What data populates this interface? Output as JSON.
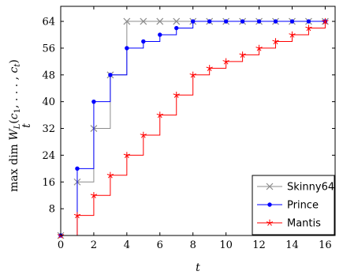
{
  "chart_data": {
    "type": "line",
    "step": true,
    "xlabel": "t",
    "ylabel": "max dim W_L(c_1, ..., c_t)",
    "ylabel_sub": "t",
    "xlim": [
      0,
      16.6
    ],
    "ylim": [
      0,
      68.5
    ],
    "xticks": [
      0,
      2,
      4,
      6,
      8,
      10,
      12,
      14,
      16
    ],
    "yticks": [
      8,
      16,
      24,
      32,
      40,
      48,
      56,
      64
    ],
    "grid": false,
    "legend_position": "bottom-right",
    "x": [
      0,
      1,
      2,
      3,
      4,
      5,
      6,
      7,
      8,
      9,
      10,
      11,
      12,
      13,
      14,
      15,
      16
    ],
    "series": [
      {
        "name": "Skinny64",
        "color": "#8c8c8c",
        "marker": "x",
        "values": [
          0,
          16,
          32,
          48,
          64,
          64,
          64,
          64,
          64,
          64,
          64,
          64,
          64,
          64,
          64,
          64,
          64
        ]
      },
      {
        "name": "Prince",
        "color": "#0000ff",
        "marker": "dot",
        "values": [
          0,
          20,
          40,
          48,
          56,
          58,
          60,
          62,
          64,
          64,
          64,
          64,
          64,
          64,
          64,
          64,
          64
        ]
      },
      {
        "name": "Mantis",
        "color": "#ff0000",
        "marker": "star",
        "values": [
          0,
          6,
          12,
          18,
          24,
          30,
          36,
          42,
          48,
          50,
          52,
          54,
          56,
          58,
          60,
          62,
          64
        ]
      }
    ]
  }
}
